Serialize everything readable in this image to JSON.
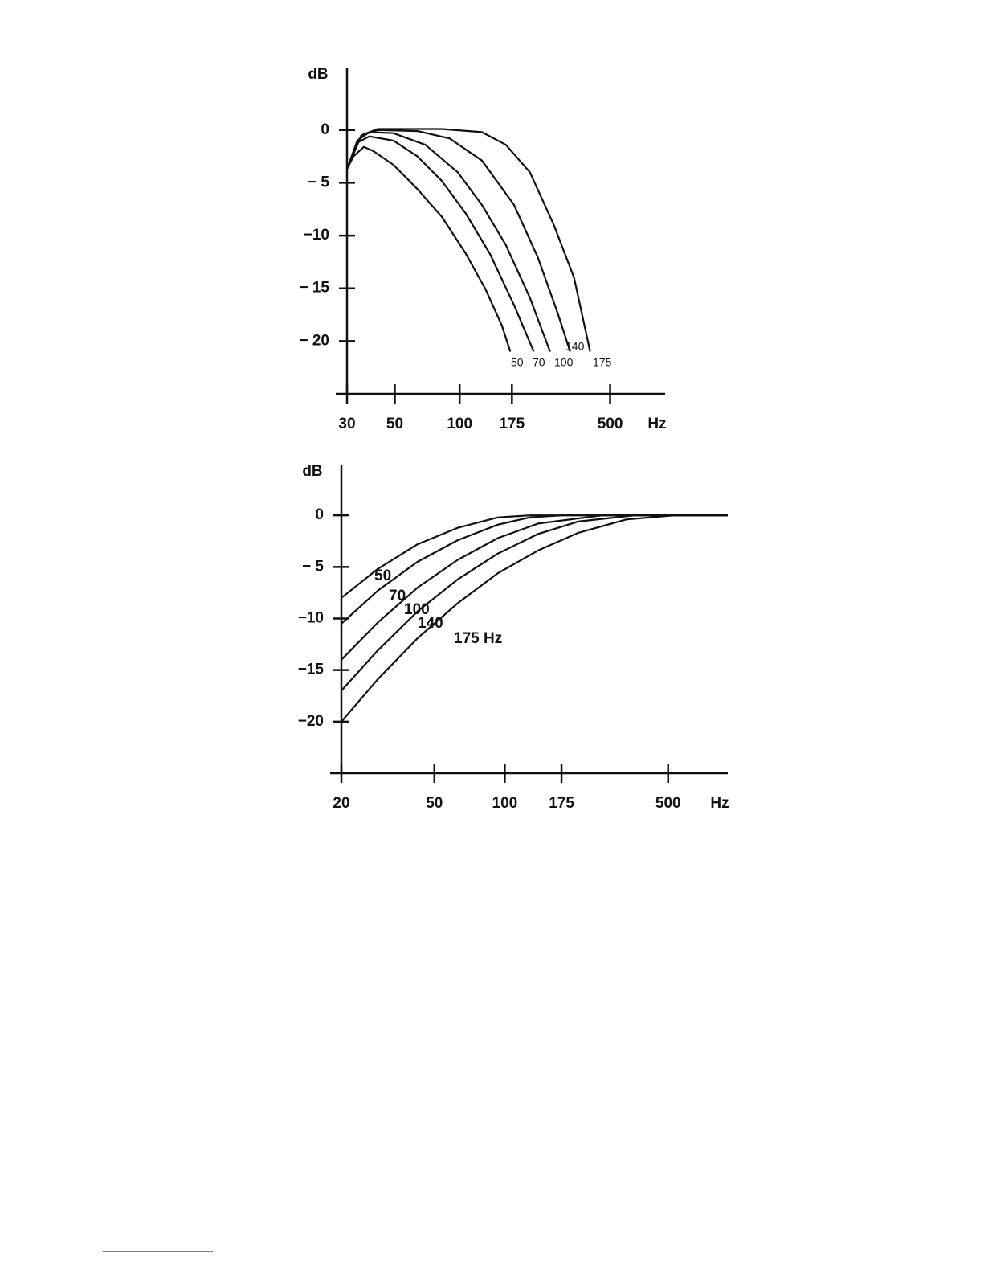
{
  "chart_data": [
    {
      "type": "line",
      "y_label": "dB",
      "x_label": "Hz",
      "log_x": true,
      "color": "#111111",
      "xlim": [
        30,
        900
      ],
      "ylim": [
        -25,
        6
      ],
      "xticks": [
        30,
        50,
        100,
        175,
        500
      ],
      "yticks": [
        0,
        {
          "value": -5,
          "label": "− 5"
        },
        {
          "value": -10,
          "label": "−10"
        },
        {
          "value": -15,
          "label": "− 15"
        },
        {
          "value": -20,
          "label": "− 20"
        }
      ],
      "series": [
        {
          "name": "50",
          "color": "#111111",
          "x": [
            30,
            32.1,
            35.9,
            39.8,
            49.3,
            63.7,
            82.5,
            106.8,
            132,
            157,
            172
          ],
          "values": [
            -3.7,
            -2.5,
            -1.6,
            -2.0,
            -3.3,
            -5.6,
            -8.2,
            -11.7,
            -15.1,
            -18.5,
            -21
          ]
        },
        {
          "name": "70",
          "color": "#111111",
          "x": [
            30,
            33.5,
            38.1,
            49.3,
            63.7,
            82.5,
            106.8,
            138,
            179,
            221
          ],
          "values": [
            -3.7,
            -1.2,
            -0.6,
            -1.0,
            -2.5,
            -4.8,
            -7.9,
            -11.7,
            -16.6,
            -21
          ]
        },
        {
          "name": "100",
          "color": "#111111",
          "x": [
            30,
            33.5,
            38.1,
            49.3,
            69.4,
            98,
            127,
            164,
            212,
            263
          ],
          "values": [
            -3.7,
            -1.0,
            -0.2,
            -0.3,
            -1.4,
            -4.0,
            -7.1,
            -10.9,
            -15.9,
            -21
          ]
        },
        {
          "name": "140",
          "color": "#111111",
          "x": [
            30,
            35,
            41.6,
            63.7,
            90,
            127,
            179,
            231,
            286,
            326
          ],
          "values": [
            -3.7,
            -0.5,
            0,
            -0.1,
            -0.8,
            -2.9,
            -7.1,
            -12.1,
            -17.4,
            -21
          ]
        },
        {
          "name": "175",
          "color": "#111111",
          "x": [
            30,
            35,
            41.6,
            82.5,
            127,
            164,
            212,
            274,
            340,
            404
          ],
          "values": [
            -3.7,
            -0.5,
            0.1,
            0.1,
            -0.2,
            -1.4,
            -4.0,
            -9.0,
            -14.0,
            -21
          ]
        }
      ]
    },
    {
      "type": "line",
      "y_label": "dB",
      "x_label": "Hz",
      "log_x": true,
      "color": "#111111",
      "xlim": [
        20,
        900
      ],
      "ylim": [
        -25,
        5
      ],
      "xticks": [
        20,
        50,
        100,
        175,
        500
      ],
      "yticks": [
        0,
        {
          "value": -5,
          "label": "− 5"
        },
        {
          "value": -10,
          "label": "−10"
        },
        {
          "value": -15,
          "label": "−15"
        },
        {
          "value": -20,
          "label": "−20"
        }
      ],
      "series": [
        {
          "name": "50",
          "color": "#111111",
          "x": [
            20,
            28.6,
            42.4,
            63,
            93.6,
            128,
            900
          ],
          "values": [
            -8,
            -5.2,
            -2.8,
            -1.2,
            -0.2,
            0,
            0
          ]
        },
        {
          "name": "70",
          "color": "#111111",
          "x": [
            20,
            28.6,
            42.4,
            63,
            93.6,
            128,
            176,
            900
          ],
          "values": [
            -10.5,
            -7.3,
            -4.5,
            -2.4,
            -0.9,
            -0.2,
            0,
            0
          ]
        },
        {
          "name": "100",
          "color": "#111111",
          "x": [
            20,
            28.6,
            42.4,
            63,
            93.6,
            139,
            261,
            900
          ],
          "values": [
            -14,
            -10.4,
            -7.0,
            -4.3,
            -2.2,
            -0.8,
            0,
            0
          ]
        },
        {
          "name": "140",
          "color": "#111111",
          "x": [
            20,
            28.6,
            42.4,
            63,
            93.6,
            139,
            206,
            359,
            900
          ],
          "values": [
            -17,
            -13.1,
            -9.3,
            -6.2,
            -3.7,
            -1.8,
            -0.6,
            0,
            0
          ]
        },
        {
          "name": "175 Hz",
          "color": "#111111",
          "x": [
            20,
            28.6,
            42.4,
            63,
            93.6,
            139,
            206,
            331,
            532,
            900
          ],
          "values": [
            -20,
            -15.9,
            -11.9,
            -8.5,
            -5.6,
            -3.4,
            -1.7,
            -0.4,
            0,
            0
          ]
        }
      ]
    }
  ]
}
